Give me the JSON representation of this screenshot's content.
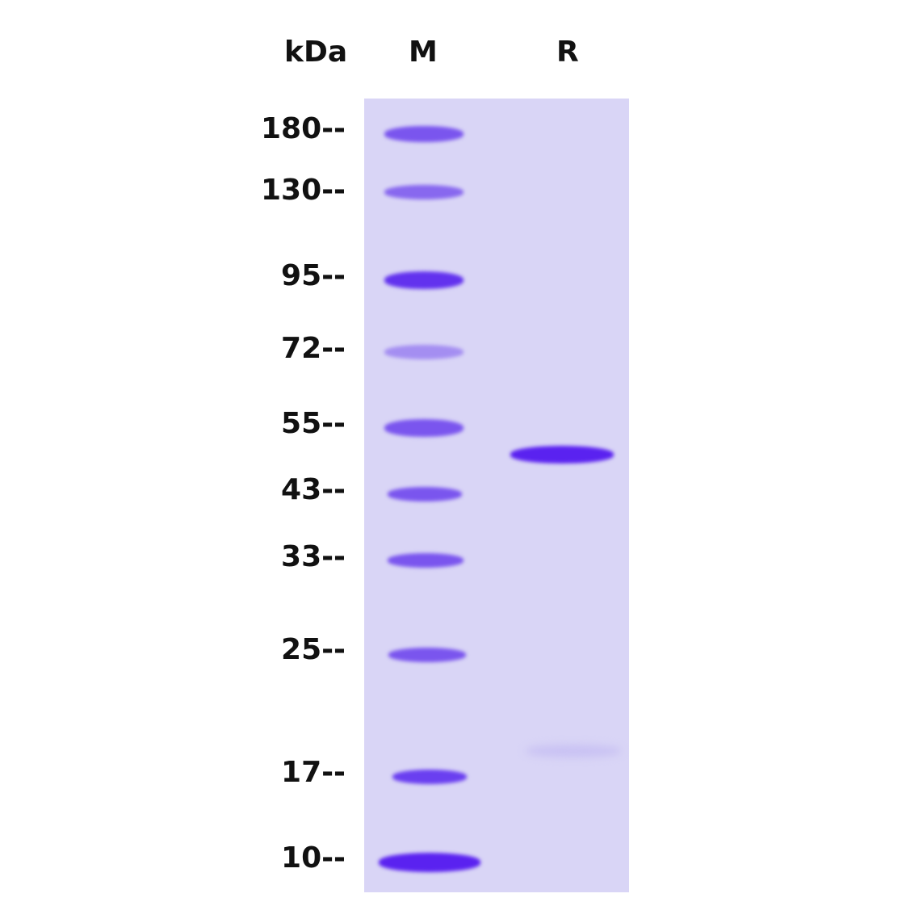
{
  "header": {
    "unit_label": "kDa",
    "lanes": [
      "M",
      "R"
    ]
  },
  "markers_kda": [
    "180--",
    "130--",
    "95--",
    "72--",
    "55--",
    "43--",
    "33--",
    "25--",
    "17--",
    "10--"
  ],
  "colors": {
    "gel_background": "#d9d5f6",
    "band": "#6a3ff0",
    "strong_band": "#5a22f0"
  },
  "sample_band": {
    "lane": "R"
  }
}
